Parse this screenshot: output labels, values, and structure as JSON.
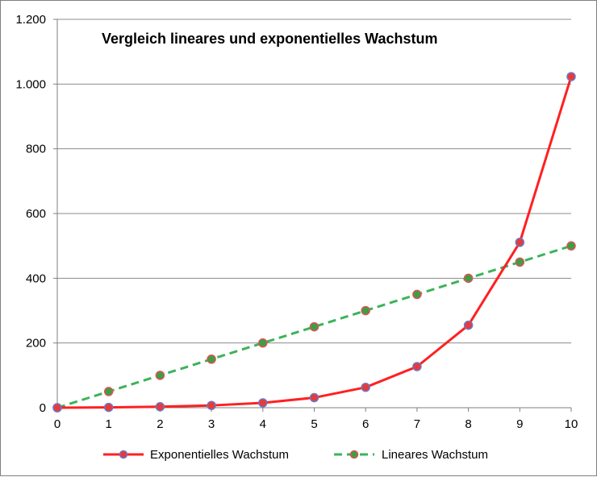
{
  "chart_data": {
    "type": "line",
    "title": "Vergleich lineares und exponentielles Wachstum",
    "xlabel": "",
    "ylabel": "",
    "x": [
      0,
      1,
      2,
      3,
      4,
      5,
      6,
      7,
      8,
      9,
      10
    ],
    "xlim": [
      0,
      10
    ],
    "ylim": [
      0,
      1200
    ],
    "y_ticks": [
      0,
      200,
      400,
      600,
      800,
      1000,
      1200
    ],
    "y_tick_labels": [
      "0",
      "200",
      "400",
      "600",
      "800",
      "1.000",
      "1.200"
    ],
    "x_tick_labels": [
      "0",
      "1",
      "2",
      "3",
      "4",
      "5",
      "6",
      "7",
      "8",
      "9",
      "10"
    ],
    "grid": "horizontal",
    "legend_position": "bottom",
    "series": [
      {
        "name": "Exponentielles Wachstum",
        "values": [
          0,
          1,
          3,
          7,
          15,
          31,
          63,
          127,
          255,
          511,
          1023
        ],
        "line_color": "#ff2020",
        "line_style": "solid",
        "marker_fill": "#e83a3a",
        "marker_edge": "#6a78c8"
      },
      {
        "name": "Lineares Wachstum",
        "values": [
          0,
          50,
          100,
          150,
          200,
          250,
          300,
          350,
          400,
          450,
          500
        ],
        "line_color": "#3cb35a",
        "line_style": "dashed",
        "marker_fill": "#3aa040",
        "marker_edge": "#e0505a"
      }
    ]
  }
}
